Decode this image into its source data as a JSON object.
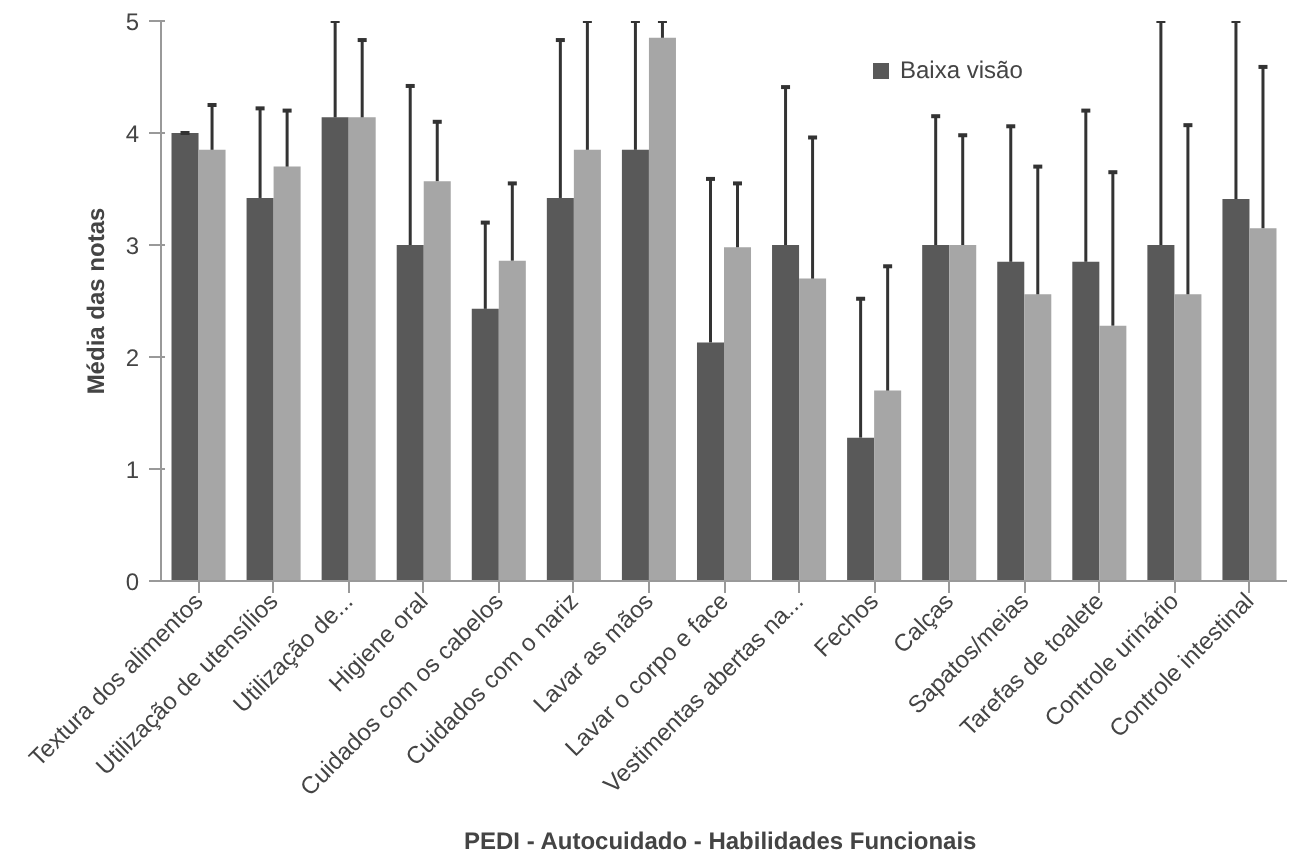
{
  "chart_data": {
    "type": "bar",
    "xlabel": "PEDI - Autocuidado - Habilidades  Funcionais",
    "ylabel": "Média das notas",
    "categories": [
      "Textura dos alimentos",
      "Utilização de utensílios",
      "Utilização de...",
      "Higiene oral",
      "Cuidados com os cabelos",
      "Cuidados com o nariz",
      "Lavar as mãos",
      "Lavar o corpo e face",
      "Vestimentas abertas na...",
      "Fechos",
      "Calças",
      "Sapatos/meias",
      "Tarefas de toalete",
      "Controle urinário",
      "Controle intestinal"
    ],
    "series": [
      {
        "name": "Baixa visão",
        "color": "#595959",
        "values": [
          4.0,
          3.42,
          4.14,
          3.0,
          2.43,
          3.42,
          3.85,
          2.13,
          3.0,
          1.28,
          3.0,
          2.85,
          2.85,
          3.0,
          3.41
        ],
        "errors": [
          [
            4.0,
            4.0
          ],
          [
            3.42,
            4.22
          ],
          [
            4.14,
            5.0
          ],
          [
            3.0,
            4.42
          ],
          [
            2.43,
            3.2
          ],
          [
            3.42,
            4.83
          ],
          [
            3.85,
            5.0
          ],
          [
            2.13,
            3.59
          ],
          [
            3.0,
            4.41
          ],
          [
            1.28,
            2.52
          ],
          [
            3.0,
            4.15
          ],
          [
            2.85,
            4.06
          ],
          [
            2.85,
            4.2
          ],
          [
            3.0,
            5.0
          ],
          [
            3.41,
            5.0
          ]
        ]
      },
      {
        "color": "#a6a6a6",
        "values": [
          3.85,
          3.7,
          4.14,
          3.57,
          2.86,
          3.85,
          4.85,
          2.98,
          2.7,
          1.7,
          3.0,
          2.56,
          2.28,
          2.56,
          3.15
        ],
        "errors": [
          [
            3.85,
            4.25
          ],
          [
            3.7,
            4.2
          ],
          [
            4.14,
            4.83
          ],
          [
            3.57,
            4.1
          ],
          [
            2.86,
            3.55
          ],
          [
            3.85,
            5.0
          ],
          [
            4.85,
            5.0
          ],
          [
            2.98,
            3.55
          ],
          [
            2.7,
            3.96
          ],
          [
            1.7,
            2.81
          ],
          [
            3.0,
            3.98
          ],
          [
            2.56,
            3.7
          ],
          [
            2.28,
            3.65
          ],
          [
            2.56,
            4.07
          ],
          [
            3.15,
            4.59
          ]
        ]
      }
    ],
    "ylim": [
      0,
      5
    ],
    "yticks": [
      0,
      1,
      2,
      3,
      4,
      5
    ],
    "grid": false,
    "legend": "top right"
  }
}
